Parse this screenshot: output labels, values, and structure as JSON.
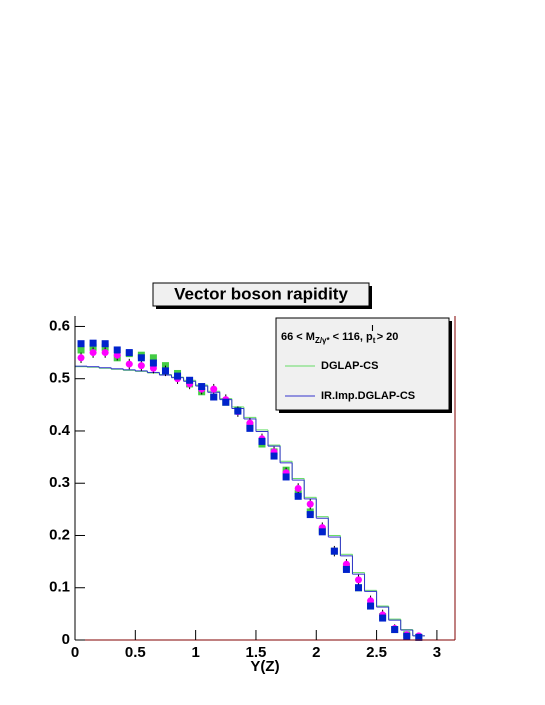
{
  "chart_data": {
    "type": "histogram",
    "title": "Vector boson rapidity",
    "xlabel": "Y(Z)",
    "xlim": [
      0,
      3.15
    ],
    "ylim": [
      0,
      0.62
    ],
    "xticks": [
      0,
      0.5,
      1,
      1.5,
      2,
      2.5,
      3
    ],
    "yticks": [
      0,
      0.1,
      0.2,
      0.3,
      0.4,
      0.5,
      0.6
    ],
    "legend_title": [
      {
        "text": "66 < M"
      },
      {
        "text": "Z/γ*",
        "shift": "sub"
      },
      {
        "text": " < 116, p"
      },
      {
        "text": "t",
        "shift": "sub"
      },
      {
        "text": "l",
        "shift": "sup"
      },
      {
        "text": " > 20"
      }
    ],
    "bins": [
      0,
      0.1,
      0.2,
      0.3,
      0.4,
      0.5,
      0.6,
      0.7,
      0.8,
      0.9,
      1.0,
      1.1,
      1.2,
      1.3,
      1.4,
      1.5,
      1.6,
      1.7,
      1.8,
      1.9,
      2.0,
      2.1,
      2.2,
      2.3,
      2.4,
      2.5,
      2.6,
      2.7,
      2.8,
      2.9
    ],
    "series": [
      {
        "name": "DGLAP-CS",
        "color": "#66dd66",
        "values": [
          0.523,
          0.522,
          0.52,
          0.518,
          0.516,
          0.514,
          0.511,
          0.508,
          0.503,
          0.497,
          0.488,
          0.476,
          0.462,
          0.446,
          0.426,
          0.402,
          0.373,
          0.342,
          0.309,
          0.273,
          0.236,
          0.2,
          0.164,
          0.129,
          0.095,
          0.065,
          0.04,
          0.02,
          0.008
        ]
      },
      {
        "name": "IR.Imp.DGLAP-CS",
        "color": "#3333cc",
        "values": [
          0.524,
          0.523,
          0.521,
          0.519,
          0.517,
          0.515,
          0.512,
          0.507,
          0.502,
          0.495,
          0.486,
          0.474,
          0.46,
          0.443,
          0.423,
          0.399,
          0.371,
          0.339,
          0.306,
          0.27,
          0.233,
          0.197,
          0.161,
          0.126,
          0.093,
          0.063,
          0.038,
          0.019,
          0.008
        ]
      }
    ],
    "points": [
      {
        "color": "#44cc44",
        "marker": "square",
        "values": [
          0.555,
          0.56,
          0.56,
          0.54,
          0.548,
          0.545,
          0.54,
          0.525,
          0.51,
          0.49,
          0.475,
          0.465,
          0.455,
          0.44,
          0.41,
          0.375,
          0.36,
          0.325,
          0.28,
          0.245,
          0.21,
          0.17,
          0.14,
          0.1,
          0.065,
          0.045,
          0.02,
          0.01,
          0.005
        ]
      },
      {
        "color": "#ff00ff",
        "marker": "circle",
        "values": [
          0.54,
          0.55,
          0.55,
          0.545,
          0.528,
          0.525,
          0.52,
          0.515,
          0.5,
          0.49,
          0.48,
          0.48,
          0.46,
          0.437,
          0.415,
          0.385,
          0.36,
          0.32,
          0.29,
          0.26,
          0.215,
          0.17,
          0.145,
          0.115,
          0.075,
          0.048,
          0.022,
          0.01,
          0.008
        ],
        "errors": [
          0.01,
          0.01,
          0.01,
          0.01,
          0.01,
          0.01,
          0.01,
          0.01,
          0.01,
          0.01,
          0.01,
          0.01,
          0.01,
          0.01,
          0.01,
          0.01,
          0.01,
          0.01,
          0.01,
          0.01,
          0.01,
          0.01,
          0.01,
          0.01,
          0.01,
          0.01,
          0.008,
          0.006,
          0.005
        ]
      },
      {
        "color": "#0022cc",
        "marker": "square",
        "values": [
          0.567,
          0.568,
          0.567,
          0.555,
          0.55,
          0.54,
          0.53,
          0.515,
          0.505,
          0.497,
          0.485,
          0.465,
          0.455,
          0.438,
          0.405,
          0.38,
          0.352,
          0.312,
          0.275,
          0.24,
          0.207,
          0.17,
          0.135,
          0.1,
          0.065,
          0.042,
          0.02,
          0.007,
          0.005
        ]
      }
    ]
  }
}
